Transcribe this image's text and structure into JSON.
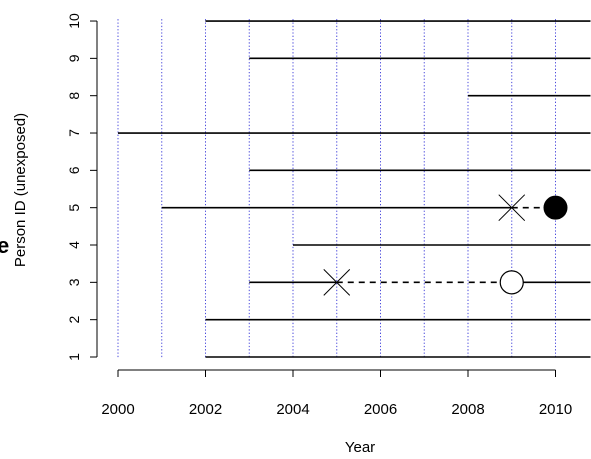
{
  "chart_data": {
    "type": "line",
    "title": "",
    "xlabel": "Year",
    "ylabel": "Person ID (unexposed)",
    "xlim": [
      1999.6,
      2010.8
    ],
    "ylim": [
      0.7,
      10.3
    ],
    "x_ticks": [
      "2000",
      "2002",
      "2004",
      "2006",
      "2008",
      "2010"
    ],
    "y_ticks": [
      "1",
      "2",
      "3",
      "4",
      "5",
      "6",
      "7",
      "8",
      "9",
      "10"
    ],
    "grid": {
      "vertical_years": [
        2000,
        2001,
        2002,
        2003,
        2004,
        2005,
        2006,
        2007,
        2008,
        2009,
        2010
      ],
      "color": "#4b4bdc",
      "style": "dotted"
    },
    "follow_up": [
      {
        "id": 1,
        "start": 2002,
        "end": 2010.8
      },
      {
        "id": 2,
        "start": 2002,
        "end": 2010.8
      },
      {
        "id": 3,
        "start": 2003,
        "end": 2005
      },
      {
        "id": 3,
        "start": 2009,
        "end": 2010.8
      },
      {
        "id": 4,
        "start": 2004,
        "end": 2010.8
      },
      {
        "id": 5,
        "start": 2001,
        "end": 2009
      },
      {
        "id": 6,
        "start": 2003,
        "end": 2010.8
      },
      {
        "id": 7,
        "start": 2000,
        "end": 2010.8
      },
      {
        "id": 8,
        "start": 2008,
        "end": 2010.8
      },
      {
        "id": 9,
        "start": 2003,
        "end": 2010.8
      },
      {
        "id": 10,
        "start": 2002,
        "end": 2010.8
      }
    ],
    "dashed_segments": [
      {
        "id": 3,
        "start": 2005,
        "end": 2009
      },
      {
        "id": 5,
        "start": 2009,
        "end": 2010
      }
    ],
    "markers": [
      {
        "id": 3,
        "x": 2005,
        "shape": "cross"
      },
      {
        "id": 3,
        "x": 2009,
        "shape": "open-circle"
      },
      {
        "id": 5,
        "x": 2009,
        "shape": "cross"
      },
      {
        "id": 5,
        "x": 2010,
        "shape": "filled-circle"
      }
    ],
    "edge_fragment": "e"
  }
}
